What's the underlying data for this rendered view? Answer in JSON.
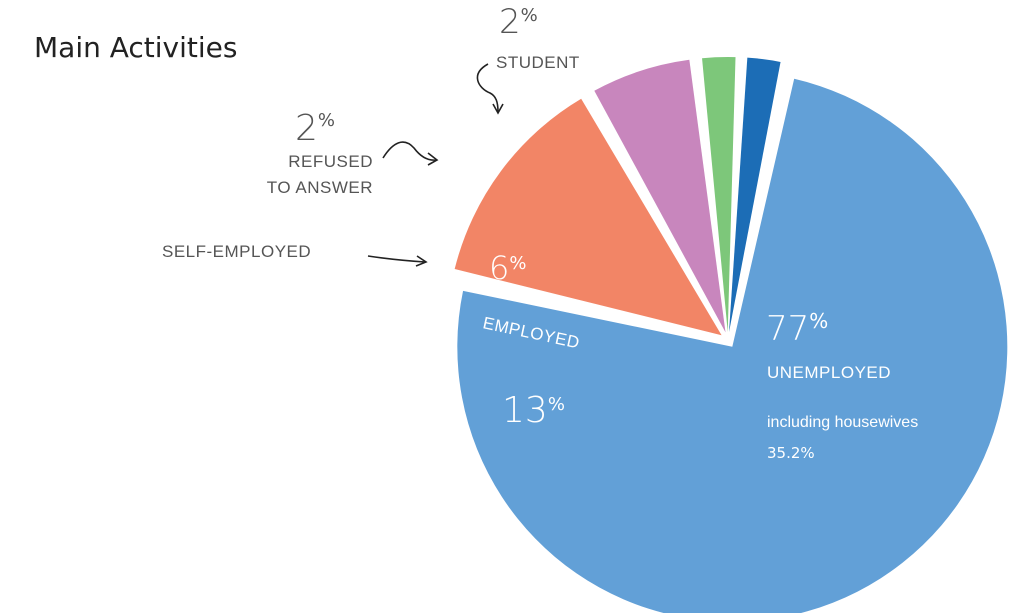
{
  "chart_data": {
    "type": "pie",
    "title": "Main Activities",
    "slices": [
      {
        "label": "UNEMPLOYED",
        "value": 77,
        "value_text": "77",
        "unit": "%",
        "color": "#62A0D7",
        "note_label": "including housewives",
        "note_value": "35.2%"
      },
      {
        "label": "EMPLOYED",
        "value": 13,
        "value_text": "13",
        "unit": "%",
        "color": "#F28566"
      },
      {
        "label": "SELF-EMPLOYED",
        "value": 6,
        "value_text": "6",
        "unit": "%",
        "color": "#C886BD"
      },
      {
        "label": "REFUSED TO ANSWER",
        "label_lines": [
          "REFUSED",
          "TO ANSWER"
        ],
        "value": 2,
        "value_text": "2",
        "unit": "%",
        "color": "#7DC77A"
      },
      {
        "label": "STUDENT",
        "value": 2,
        "value_text": "2",
        "unit": "%",
        "color": "#1C6DB6"
      }
    ]
  }
}
